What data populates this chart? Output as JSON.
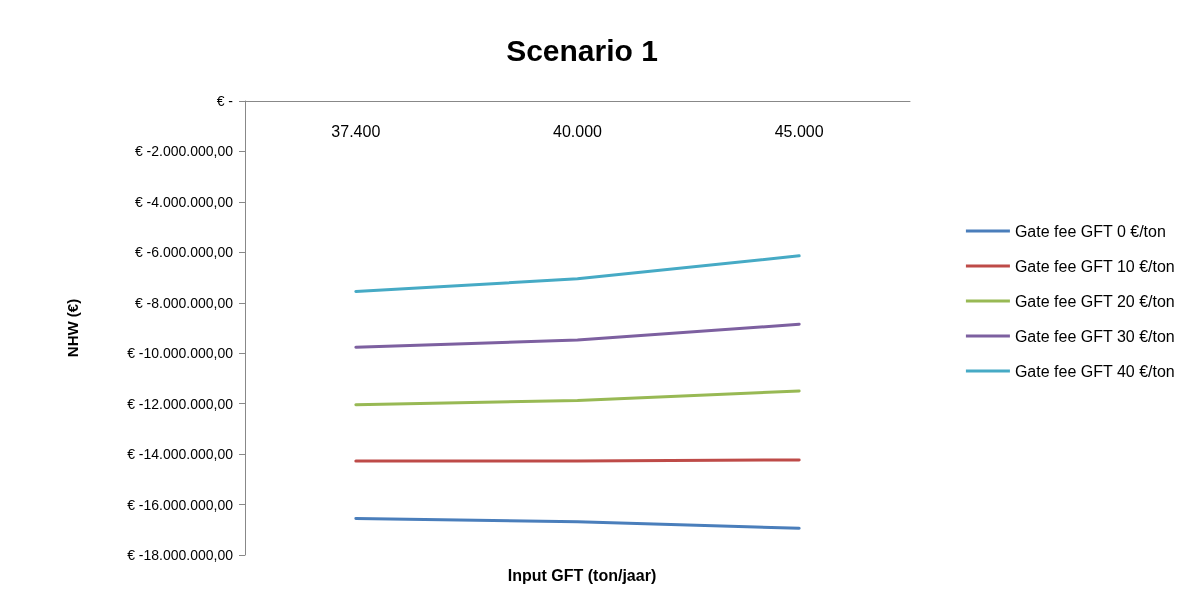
{
  "chart_data": {
    "type": "line",
    "title": "Scenario 1",
    "xlabel": "Input GFT (ton/jaar)",
    "ylabel": "NHW (€)",
    "categories": [
      "37.400",
      "40.000",
      "45.000"
    ],
    "series": [
      {
        "name": "Gate fee GFT 0 €/ton",
        "color": "#4a7ebb",
        "values": [
          -16550000,
          -16680000,
          -16940000
        ]
      },
      {
        "name": "Gate fee GFT 10 €/ton",
        "color": "#be4b48",
        "values": [
          -14270000,
          -14270000,
          -14230000
        ]
      },
      {
        "name": "Gate fee GFT 20 €/ton",
        "color": "#98b954",
        "values": [
          -12040000,
          -11870000,
          -11500000
        ]
      },
      {
        "name": "Gate fee GFT 30 €/ton",
        "color": "#7d60a0",
        "values": [
          -9760000,
          -9480000,
          -8850000
        ]
      },
      {
        "name": "Gate fee GFT 40 €/ton",
        "color": "#46aac5",
        "values": [
          -7550000,
          -7050000,
          -6140000
        ]
      }
    ],
    "ylim": [
      -18000000,
      0
    ],
    "yticks": [
      {
        "value": 0,
        "label": "€ -"
      },
      {
        "value": -2000000,
        "label": "€ -2.000.000,00"
      },
      {
        "value": -4000000,
        "label": "€ -4.000.000,00"
      },
      {
        "value": -6000000,
        "label": "€ -6.000.000,00"
      },
      {
        "value": -8000000,
        "label": "€ -8.000.000,00"
      },
      {
        "value": -10000000,
        "label": "€ -10.000.000,00"
      },
      {
        "value": -12000000,
        "label": "€ -12.000.000,00"
      },
      {
        "value": -14000000,
        "label": "€ -14.000.000,00"
      },
      {
        "value": -16000000,
        "label": "€ -16.000.000,00"
      },
      {
        "value": -18000000,
        "label": "€ -18.000.000,00"
      }
    ],
    "grid": false,
    "legend": "right",
    "marker": "none",
    "line_style": "solid"
  }
}
